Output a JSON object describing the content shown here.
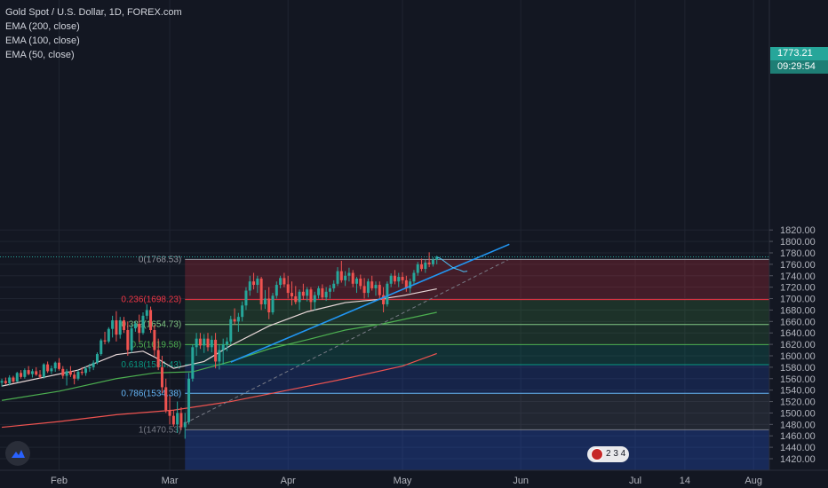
{
  "legend": {
    "title": "Gold Spot / U.S. Dollar, 1D, FOREX.com",
    "ema200": "EMA (200, close)",
    "ema100": "EMA (100, close)",
    "ema50": "EMA (50, close)"
  },
  "price_tags": {
    "last": "1773.21",
    "countdown": "09:29:54"
  },
  "badge": {
    "text": "2 3 4"
  },
  "colors": {
    "up": "#26a69a",
    "down": "#ef5350",
    "bg": "#131722"
  },
  "chart_data": {
    "type": "candlestick",
    "ylim": [
      1410,
      1820
    ],
    "yticks": [
      1420,
      1440,
      1460,
      1480,
      1500,
      1520,
      1540,
      1560,
      1580,
      1600,
      1620,
      1640,
      1660,
      1680,
      1700,
      1720,
      1740,
      1760,
      1780,
      1800,
      1820
    ],
    "xticks": [
      {
        "label": "Feb",
        "d": 0
      },
      {
        "label": "Mar",
        "d": 29
      },
      {
        "label": "Apr",
        "d": 60
      },
      {
        "label": "May",
        "d": 90
      },
      {
        "label": "Jun",
        "d": 121
      },
      {
        "label": "Jul",
        "d": 151
      },
      {
        "label": "14",
        "d": 164
      },
      {
        "label": "Aug",
        "d": 182
      }
    ],
    "candles": [
      [
        -15,
        1553,
        1560,
        1546,
        1556
      ],
      [
        -14,
        1556,
        1562,
        1550,
        1552
      ],
      [
        -13,
        1552,
        1566,
        1548,
        1562
      ],
      [
        -12,
        1562,
        1565,
        1552,
        1555
      ],
      [
        -11,
        1555,
        1572,
        1554,
        1570
      ],
      [
        -10,
        1570,
        1575,
        1560,
        1563
      ],
      [
        -9,
        1563,
        1578,
        1560,
        1575
      ],
      [
        -8,
        1575,
        1582,
        1566,
        1568
      ],
      [
        -7,
        1568,
        1577,
        1562,
        1573
      ],
      [
        -6,
        1573,
        1580,
        1565,
        1567
      ],
      [
        -5,
        1567,
        1575,
        1560,
        1563
      ],
      [
        -4,
        1563,
        1587,
        1560,
        1585
      ],
      [
        -3,
        1585,
        1590,
        1570,
        1573
      ],
      [
        -2,
        1573,
        1583,
        1568,
        1578
      ],
      [
        -1,
        1578,
        1590,
        1572,
        1588
      ],
      [
        0,
        1588,
        1596,
        1574,
        1577
      ],
      [
        1,
        1577,
        1582,
        1560,
        1565
      ],
      [
        2,
        1565,
        1577,
        1548,
        1573
      ],
      [
        3,
        1573,
        1582,
        1563,
        1567
      ],
      [
        4,
        1567,
        1574,
        1550,
        1560
      ],
      [
        5,
        1560,
        1575,
        1557,
        1572
      ],
      [
        6,
        1572,
        1580,
        1566,
        1570
      ],
      [
        7,
        1570,
        1582,
        1565,
        1578
      ],
      [
        8,
        1578,
        1586,
        1572,
        1580
      ],
      [
        9,
        1580,
        1592,
        1575,
        1588
      ],
      [
        10,
        1588,
        1606,
        1585,
        1603
      ],
      [
        11,
        1603,
        1630,
        1600,
        1627
      ],
      [
        12,
        1627,
        1642,
        1620,
        1625
      ],
      [
        13,
        1625,
        1650,
        1622,
        1647
      ],
      [
        14,
        1647,
        1670,
        1632,
        1662
      ],
      [
        15,
        1662,
        1678,
        1625,
        1637
      ],
      [
        16,
        1637,
        1668,
        1630,
        1662
      ],
      [
        17,
        1662,
        1668,
        1640,
        1645
      ],
      [
        18,
        1645,
        1660,
        1600,
        1610
      ],
      [
        19,
        1610,
        1654,
        1605,
        1648
      ],
      [
        20,
        1648,
        1660,
        1642,
        1656
      ],
      [
        21,
        1656,
        1672,
        1624,
        1640
      ],
      [
        22,
        1640,
        1676,
        1637,
        1670
      ],
      [
        23,
        1670,
        1690,
        1664,
        1680
      ],
      [
        24,
        1680,
        1686,
        1640,
        1645
      ],
      [
        25,
        1645,
        1654,
        1600,
        1610
      ],
      [
        26,
        1610,
        1630,
        1575,
        1580
      ],
      [
        27,
        1580,
        1600,
        1535,
        1545
      ],
      [
        28,
        1545,
        1560,
        1500,
        1505
      ],
      [
        29,
        1505,
        1530,
        1480,
        1495
      ],
      [
        30,
        1495,
        1505,
        1476,
        1480
      ],
      [
        31,
        1480,
        1520,
        1465,
        1500
      ],
      [
        32,
        1500,
        1510,
        1470,
        1475
      ],
      [
        33,
        1475,
        1500,
        1455,
        1484
      ],
      [
        34,
        1484,
        1570,
        1480,
        1560
      ],
      [
        35,
        1560,
        1620,
        1555,
        1615
      ],
      [
        36,
        1615,
        1640,
        1600,
        1630
      ],
      [
        37,
        1630,
        1640,
        1612,
        1618
      ],
      [
        38,
        1618,
        1638,
        1605,
        1630
      ],
      [
        39,
        1630,
        1640,
        1608,
        1615
      ],
      [
        40,
        1615,
        1635,
        1606,
        1628
      ],
      [
        41,
        1628,
        1640,
        1578,
        1590
      ],
      [
        42,
        1590,
        1620,
        1576,
        1610
      ],
      [
        43,
        1610,
        1630,
        1585,
        1620
      ],
      [
        44,
        1620,
        1632,
        1608,
        1625
      ],
      [
        45,
        1625,
        1670,
        1620,
        1664
      ],
      [
        46,
        1664,
        1683,
        1655,
        1660
      ],
      [
        47,
        1660,
        1675,
        1642,
        1668
      ],
      [
        48,
        1668,
        1695,
        1660,
        1688
      ],
      [
        49,
        1688,
        1720,
        1680,
        1714
      ],
      [
        50,
        1714,
        1740,
        1705,
        1730
      ],
      [
        51,
        1730,
        1745,
        1716,
        1724
      ],
      [
        52,
        1724,
        1740,
        1710,
        1735
      ],
      [
        53,
        1735,
        1738,
        1680,
        1690
      ],
      [
        54,
        1690,
        1715,
        1682,
        1700
      ],
      [
        55,
        1700,
        1720,
        1664,
        1676
      ],
      [
        56,
        1676,
        1710,
        1672,
        1705
      ],
      [
        57,
        1705,
        1730,
        1700,
        1724
      ],
      [
        58,
        1724,
        1740,
        1718,
        1736
      ],
      [
        59,
        1736,
        1745,
        1720,
        1725
      ],
      [
        60,
        1725,
        1740,
        1700,
        1710
      ],
      [
        61,
        1710,
        1730,
        1688,
        1704
      ],
      [
        62,
        1704,
        1722,
        1690,
        1694
      ],
      [
        63,
        1694,
        1716,
        1680,
        1712
      ],
      [
        64,
        1712,
        1726,
        1698,
        1705
      ],
      [
        65,
        1705,
        1720,
        1695,
        1716
      ],
      [
        66,
        1716,
        1720,
        1680,
        1694
      ],
      [
        67,
        1694,
        1712,
        1680,
        1706
      ],
      [
        68,
        1706,
        1722,
        1700,
        1718
      ],
      [
        69,
        1718,
        1725,
        1698,
        1702
      ],
      [
        70,
        1702,
        1720,
        1696,
        1712
      ],
      [
        71,
        1712,
        1724,
        1700,
        1718
      ],
      [
        72,
        1718,
        1732,
        1712,
        1726
      ],
      [
        73,
        1726,
        1755,
        1722,
        1748
      ],
      [
        74,
        1748,
        1766,
        1728,
        1732
      ],
      [
        75,
        1732,
        1748,
        1722,
        1740
      ],
      [
        76,
        1740,
        1754,
        1730,
        1745
      ],
      [
        77,
        1745,
        1750,
        1720,
        1726
      ],
      [
        78,
        1726,
        1738,
        1710,
        1735
      ],
      [
        79,
        1735,
        1742,
        1716,
        1722
      ],
      [
        80,
        1722,
        1736,
        1700,
        1710
      ],
      [
        81,
        1710,
        1735,
        1702,
        1730
      ],
      [
        82,
        1730,
        1740,
        1714,
        1718
      ],
      [
        83,
        1718,
        1730,
        1705,
        1724
      ],
      [
        84,
        1724,
        1730,
        1700,
        1706
      ],
      [
        85,
        1706,
        1720,
        1676,
        1690
      ],
      [
        86,
        1690,
        1730,
        1686,
        1726
      ],
      [
        87,
        1726,
        1744,
        1720,
        1740
      ],
      [
        88,
        1740,
        1750,
        1725,
        1730
      ],
      [
        89,
        1730,
        1745,
        1720,
        1738
      ],
      [
        90,
        1738,
        1746,
        1726,
        1732
      ],
      [
        91,
        1732,
        1740,
        1712,
        1718
      ],
      [
        92,
        1718,
        1735,
        1710,
        1730
      ],
      [
        93,
        1730,
        1750,
        1724,
        1745
      ],
      [
        94,
        1745,
        1764,
        1740,
        1760
      ],
      [
        95,
        1760,
        1770,
        1748,
        1752
      ],
      [
        96,
        1752,
        1768,
        1745,
        1763
      ],
      [
        97,
        1763,
        1781,
        1755,
        1760
      ],
      [
        98,
        1760,
        1772,
        1756,
        1768
      ],
      [
        99,
        1768,
        1775,
        1760,
        1773
      ]
    ],
    "ema50": [
      [
        -15,
        1547
      ],
      [
        5,
        1575
      ],
      [
        15,
        1602
      ],
      [
        22,
        1608
      ],
      [
        25,
        1598
      ],
      [
        30,
        1578
      ],
      [
        38,
        1590
      ],
      [
        45,
        1618
      ],
      [
        55,
        1652
      ],
      [
        65,
        1677
      ],
      [
        75,
        1693
      ],
      [
        83,
        1698
      ],
      [
        90,
        1705
      ],
      [
        99,
        1717
      ]
    ],
    "ema100": [
      [
        -15,
        1522
      ],
      [
        0,
        1538
      ],
      [
        15,
        1560
      ],
      [
        25,
        1570
      ],
      [
        35,
        1572
      ],
      [
        45,
        1590
      ],
      [
        55,
        1612
      ],
      [
        65,
        1628
      ],
      [
        75,
        1645
      ],
      [
        85,
        1656
      ],
      [
        99,
        1676
      ]
    ],
    "ema200": [
      [
        -15,
        1475
      ],
      [
        0,
        1485
      ],
      [
        15,
        1497
      ],
      [
        30,
        1505
      ],
      [
        45,
        1520
      ],
      [
        60,
        1540
      ],
      [
        75,
        1560
      ],
      [
        90,
        1582
      ],
      [
        99,
        1604
      ]
    ],
    "trendline": [
      [
        45,
        1589
      ],
      [
        118,
        1795
      ]
    ],
    "dashed_line": [
      [
        33,
        1482
      ],
      [
        118,
        1769
      ]
    ],
    "projection": [
      [
        99,
        1773
      ],
      [
        100,
        1770
      ],
      [
        101,
        1765
      ],
      [
        102,
        1760
      ],
      [
        103,
        1755
      ],
      [
        104,
        1752
      ],
      [
        105,
        1750
      ],
      [
        106,
        1747
      ],
      [
        107,
        1748
      ]
    ],
    "fib": {
      "x_start": 33,
      "levels": [
        {
          "ratio": "0",
          "value": 1768.53,
          "label": "0(1768.53)",
          "color": "#9598a1"
        },
        {
          "ratio": "0.236",
          "value": 1698.23,
          "label": "0.236(1698.23)",
          "color": "#f23645"
        },
        {
          "ratio": "0.382",
          "value": 1654.73,
          "label": "0.382(1654.73)",
          "color": "#81c784"
        },
        {
          "ratio": "0.5",
          "value": 1619.58,
          "label": "0.5(1619.58)",
          "color": "#4caf50"
        },
        {
          "ratio": "0.618",
          "value": 1584.43,
          "label": "0.618(1584.43)",
          "color": "#089981"
        },
        {
          "ratio": "0.786",
          "value": 1534.38,
          "label": "0.786(1534.38)",
          "color": "#64b5f6"
        },
        {
          "ratio": "1",
          "value": 1470.53,
          "label": "1(1470.53)",
          "color": "#787b86"
        }
      ],
      "zones": [
        "rgba(242,54,69,0.22)",
        "rgba(76,175,80,0.18)",
        "rgba(76,175,80,0.16)",
        "rgba(8,153,129,0.2)",
        "rgba(41,98,255,0.18)",
        "rgba(120,123,134,0.16)",
        "rgba(41,98,255,0.25)"
      ]
    }
  }
}
